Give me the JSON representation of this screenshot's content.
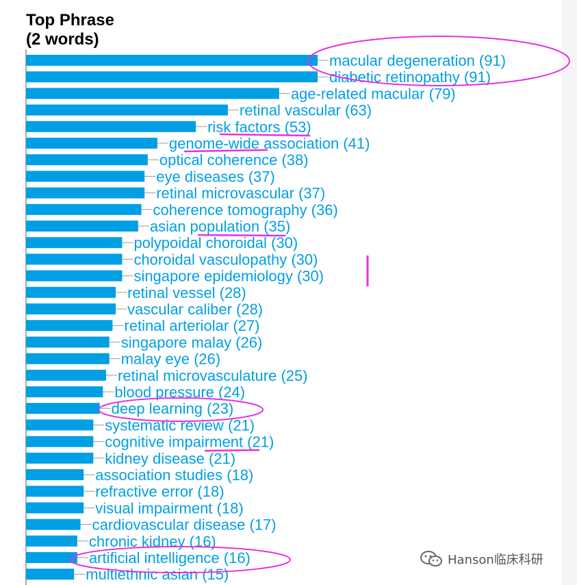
{
  "watermark": "Hanson临床科研",
  "chart_data": {
    "type": "bar",
    "orientation": "horizontal",
    "title": "Top Phrase\n(2 words)",
    "bar_color": "#009fe3",
    "annotation_color": "#e62ee6",
    "xlim": [
      0,
      91
    ],
    "categories": [
      "macular degeneration (91)",
      "diabetic retinopathy (91)",
      "age-related macular (79)",
      "retinal vascular (63)",
      "risk factors (53)",
      "genome-wide association (41)",
      "optical coherence (38)",
      "eye diseases (37)",
      "retinal microvascular (37)",
      "coherence tomography (36)",
      "asian population (35)",
      "polypoidal choroidal (30)",
      "choroidal vasculopathy (30)",
      "singapore epidemiology (30)",
      "retinal vessel (28)",
      "vascular caliber (28)",
      "retinal arteriolar (27)",
      "singapore malay (26)",
      "malay eye (26)",
      "retinal microvasculature (25)",
      "blood pressure (24)",
      "deep learning (23)",
      "systematic review (21)",
      "cognitive impairment (21)",
      "kidney disease (21)",
      "association studies (18)",
      "refractive error (18)",
      "visual impairment (18)",
      "cardiovascular disease (17)",
      "chronic kidney (16)",
      "artificial intelligence (16)",
      "multiethnic asian (15)"
    ],
    "values": [
      91,
      91,
      79,
      63,
      53,
      41,
      38,
      37,
      37,
      36,
      35,
      30,
      30,
      30,
      28,
      28,
      27,
      26,
      26,
      25,
      24,
      23,
      21,
      21,
      21,
      18,
      18,
      18,
      17,
      16,
      16,
      15
    ]
  }
}
